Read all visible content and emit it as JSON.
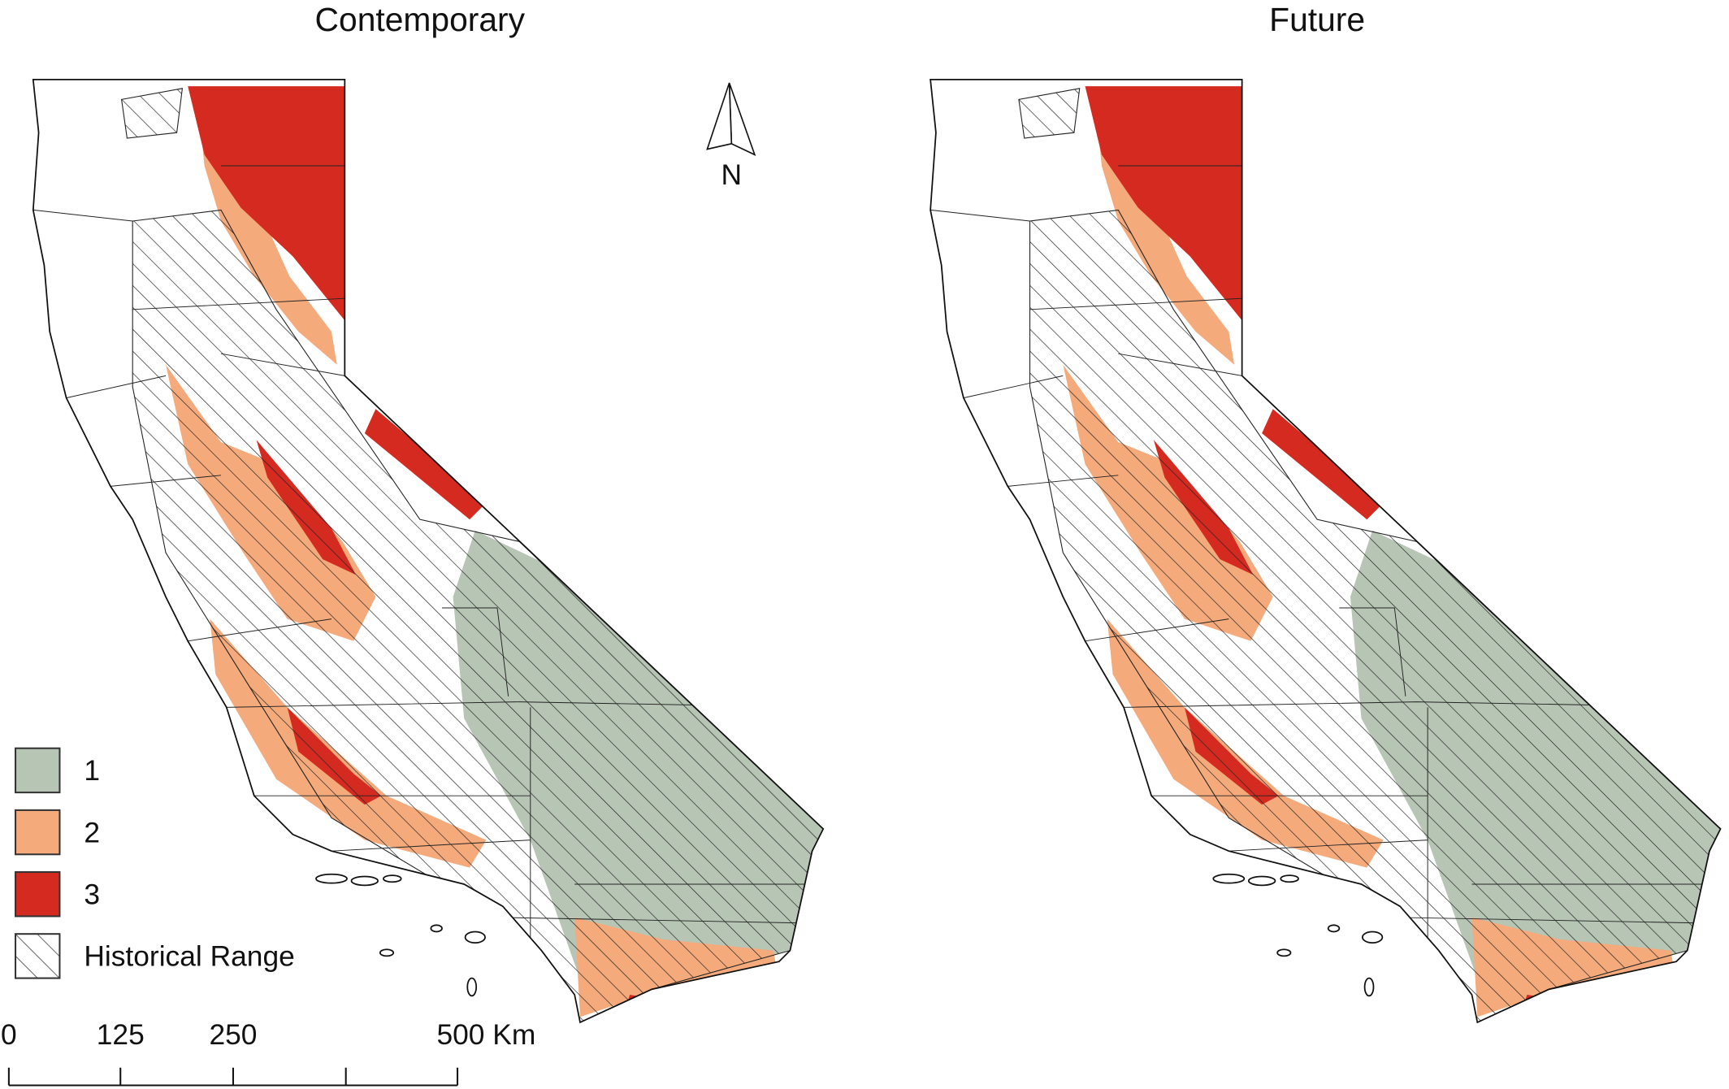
{
  "maps": [
    {
      "title": "Contemporary"
    },
    {
      "title": "Future"
    }
  ],
  "legend": [
    {
      "label": "1",
      "color": "#b7c5b5"
    },
    {
      "label": "2",
      "color": "#f5aa7b"
    },
    {
      "label": "3",
      "color": "#d52a20"
    },
    {
      "label": "Historical Range"
    }
  ],
  "north_arrow": {
    "label": "N"
  },
  "scale_bar": {
    "labels": [
      "0",
      "125",
      "250",
      "500 Km"
    ]
  }
}
